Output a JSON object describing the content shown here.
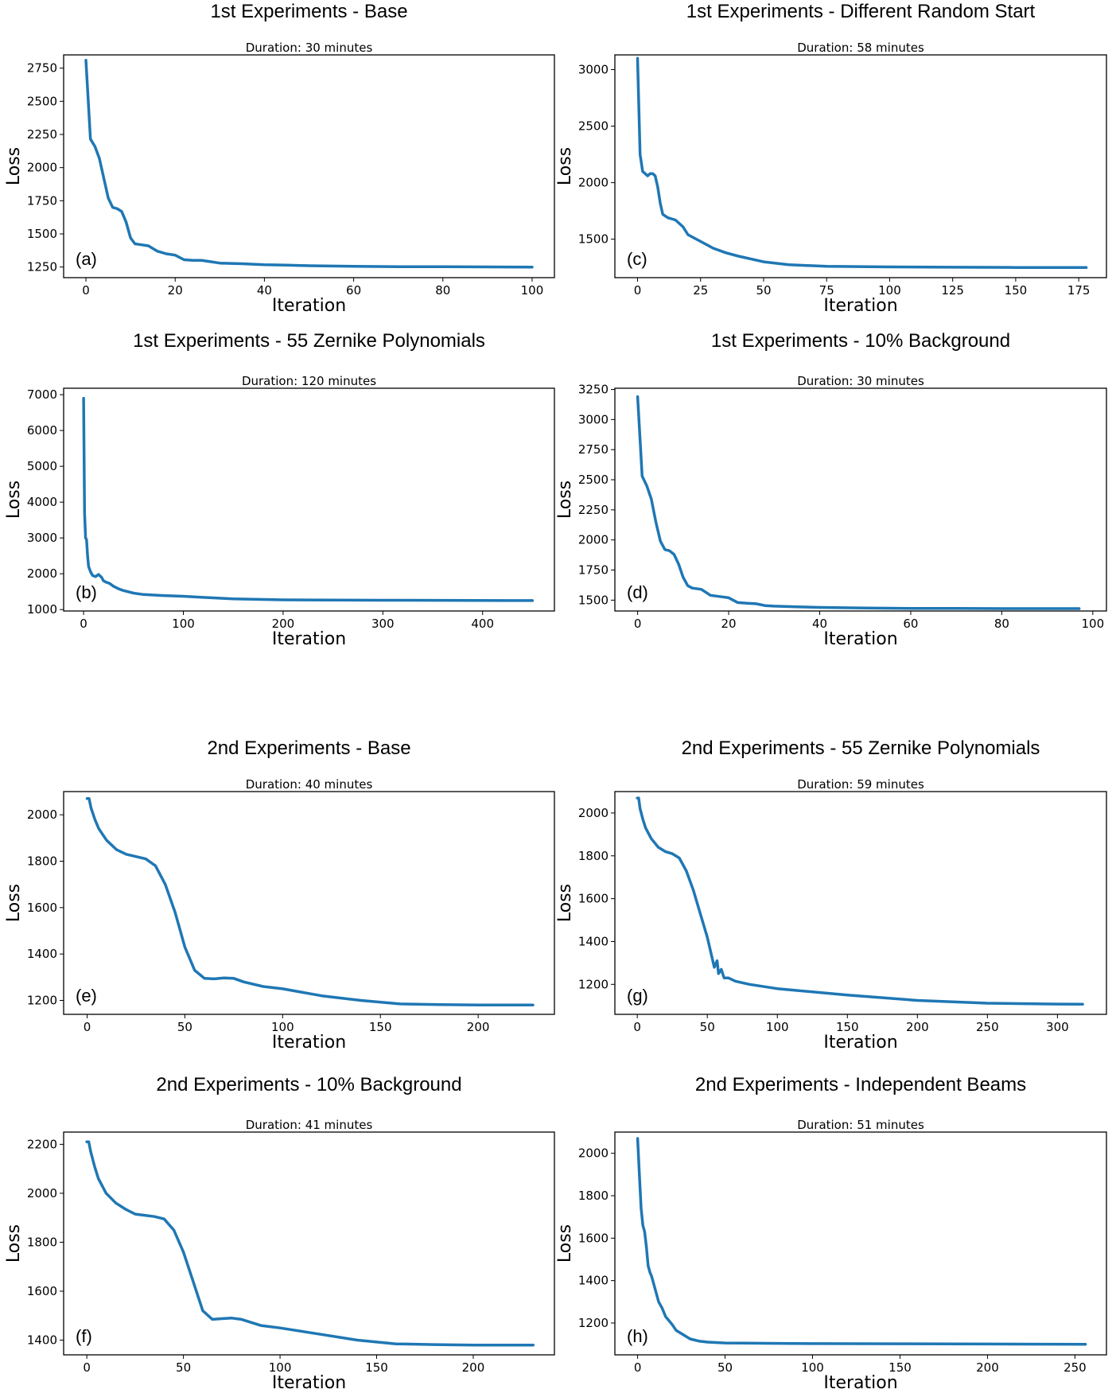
{
  "figure": {
    "line_color": "#1f77b4"
  },
  "chart_data": [
    {
      "type": "line",
      "panel": "(a)",
      "title": "1st Experiments - Base",
      "subtitle": "Duration: 30 minutes",
      "xlabel": "Iteration",
      "ylabel": "Loss",
      "xlim": [
        -5,
        105
      ],
      "ylim": [
        1170,
        2850
      ],
      "xticks": [
        0,
        20,
        40,
        60,
        80,
        100
      ],
      "yticks": [
        1250,
        1500,
        1750,
        2000,
        2250,
        2500,
        2750
      ],
      "x": [
        0,
        1,
        2,
        3,
        4,
        5,
        6,
        7,
        8,
        9,
        10,
        11,
        12,
        14,
        16,
        18,
        20,
        22,
        24,
        26,
        28,
        30,
        35,
        40,
        45,
        50,
        60,
        70,
        80,
        90,
        100
      ],
      "y": [
        2810,
        2215,
        2160,
        2070,
        1920,
        1770,
        1700,
        1690,
        1670,
        1590,
        1470,
        1425,
        1420,
        1410,
        1370,
        1350,
        1340,
        1305,
        1300,
        1300,
        1290,
        1280,
        1275,
        1268,
        1265,
        1260,
        1255,
        1253,
        1252,
        1251,
        1250
      ]
    },
    {
      "type": "line",
      "panel": "(c)",
      "title": "1st Experiments - Different Random Start",
      "subtitle": "Duration: 58 minutes",
      "xlabel": "Iteration",
      "ylabel": "Loss",
      "xlim": [
        -9,
        186
      ],
      "ylim": [
        1160,
        3130
      ],
      "xticks": [
        0,
        25,
        50,
        75,
        100,
        125,
        150,
        175
      ],
      "yticks": [
        1500,
        2000,
        2500,
        3000
      ],
      "x": [
        0,
        1,
        2,
        4,
        5,
        6,
        7,
        8,
        9,
        10,
        12,
        15,
        18,
        20,
        25,
        30,
        35,
        40,
        50,
        60,
        75,
        100,
        125,
        150,
        178
      ],
      "y": [
        3100,
        2250,
        2100,
        2060,
        2080,
        2080,
        2060,
        1960,
        1820,
        1720,
        1690,
        1670,
        1610,
        1540,
        1480,
        1420,
        1380,
        1350,
        1300,
        1275,
        1260,
        1255,
        1252,
        1250,
        1250
      ]
    },
    {
      "type": "line",
      "panel": "(b)",
      "title": "1st Experiments - 55 Zernike Polynomials",
      "subtitle": "Duration: 120 minutes",
      "xlabel": "Iteration",
      "ylabel": "Loss",
      "xlim": [
        -20,
        472
      ],
      "ylim": [
        960,
        7180
      ],
      "xticks": [
        0,
        100,
        200,
        300,
        400
      ],
      "yticks": [
        1000,
        2000,
        3000,
        4000,
        5000,
        6000,
        7000
      ],
      "x": [
        0,
        1,
        2,
        3,
        4,
        5,
        7,
        9,
        12,
        15,
        18,
        20,
        23,
        26,
        30,
        35,
        40,
        50,
        60,
        80,
        100,
        120,
        150,
        200,
        300,
        450
      ],
      "y": [
        6900,
        3700,
        3000,
        2950,
        2500,
        2200,
        2050,
        1950,
        1920,
        1980,
        1900,
        1800,
        1760,
        1730,
        1650,
        1580,
        1530,
        1460,
        1420,
        1390,
        1370,
        1340,
        1300,
        1270,
        1260,
        1250
      ]
    },
    {
      "type": "line",
      "panel": "(d)",
      "title": "1st Experiments - 10% Background",
      "subtitle": "Duration: 30 minutes",
      "xlabel": "Iteration",
      "ylabel": "Loss",
      "xlim": [
        -5,
        103
      ],
      "ylim": [
        1410,
        3260
      ],
      "xticks": [
        0,
        20,
        40,
        60,
        80,
        100
      ],
      "yticks": [
        1500,
        1750,
        2000,
        2250,
        2500,
        2750,
        3000,
        3250
      ],
      "x": [
        0,
        1,
        2,
        3,
        4,
        5,
        6,
        7,
        8,
        9,
        10,
        11,
        12,
        14,
        16,
        18,
        20,
        22,
        24,
        26,
        28,
        30,
        35,
        40,
        50,
        60,
        70,
        80,
        97
      ],
      "y": [
        3190,
        2530,
        2450,
        2340,
        2150,
        1990,
        1920,
        1910,
        1880,
        1800,
        1690,
        1620,
        1600,
        1590,
        1540,
        1530,
        1520,
        1480,
        1475,
        1470,
        1455,
        1450,
        1445,
        1440,
        1435,
        1432,
        1431,
        1430,
        1430
      ]
    },
    {
      "type": "line",
      "panel": "(e)",
      "title": "2nd Experiments - Base",
      "subtitle": "Duration: 40 minutes",
      "xlabel": "Iteration",
      "ylabel": "Loss",
      "xlim": [
        -12,
        239
      ],
      "ylim": [
        1140,
        2100
      ],
      "xticks": [
        0,
        50,
        100,
        150,
        200
      ],
      "yticks": [
        1200,
        1400,
        1600,
        1800,
        2000
      ],
      "x": [
        0,
        1,
        2,
        4,
        6,
        10,
        15,
        20,
        25,
        30,
        35,
        40,
        45,
        50,
        55,
        60,
        65,
        70,
        75,
        80,
        90,
        100,
        120,
        140,
        160,
        180,
        200,
        228
      ],
      "y": [
        2070,
        2070,
        2030,
        1980,
        1940,
        1890,
        1850,
        1830,
        1820,
        1810,
        1780,
        1700,
        1580,
        1430,
        1330,
        1295,
        1293,
        1297,
        1295,
        1280,
        1260,
        1250,
        1220,
        1200,
        1185,
        1182,
        1180,
        1180
      ]
    },
    {
      "type": "line",
      "panel": "(g)",
      "title": "2nd Experiments - 55 Zernike Polynomials",
      "subtitle": "Duration: 59 minutes",
      "xlabel": "Iteration",
      "ylabel": "Loss",
      "xlim": [
        -16,
        335
      ],
      "ylim": [
        1060,
        2100
      ],
      "xticks": [
        0,
        50,
        100,
        150,
        200,
        250,
        300
      ],
      "yticks": [
        1200,
        1400,
        1600,
        1800,
        2000
      ],
      "x": [
        0,
        1,
        2,
        4,
        6,
        10,
        15,
        20,
        25,
        30,
        35,
        40,
        45,
        50,
        55,
        57,
        58,
        60,
        62,
        65,
        70,
        80,
        100,
        150,
        200,
        250,
        300,
        318
      ],
      "y": [
        2070,
        2070,
        2020,
        1970,
        1930,
        1880,
        1840,
        1820,
        1810,
        1790,
        1730,
        1640,
        1530,
        1420,
        1280,
        1310,
        1250,
        1270,
        1230,
        1230,
        1215,
        1200,
        1180,
        1150,
        1125,
        1112,
        1108,
        1107
      ]
    },
    {
      "type": "line",
      "panel": "(f)",
      "title": "2nd Experiments - 10% Background",
      "subtitle": "Duration: 41 minutes",
      "xlabel": "Iteration",
      "ylabel": "Loss",
      "xlim": [
        -12,
        242
      ],
      "ylim": [
        1340,
        2250
      ],
      "xticks": [
        0,
        50,
        100,
        150,
        200
      ],
      "yticks": [
        1400,
        1600,
        1800,
        2000,
        2200
      ],
      "x": [
        0,
        1,
        2,
        4,
        6,
        10,
        15,
        20,
        25,
        30,
        35,
        40,
        45,
        50,
        55,
        60,
        65,
        70,
        75,
        80,
        90,
        100,
        120,
        140,
        160,
        180,
        200,
        231
      ],
      "y": [
        2210,
        2210,
        2170,
        2110,
        2060,
        2000,
        1960,
        1935,
        1915,
        1910,
        1905,
        1895,
        1850,
        1760,
        1640,
        1520,
        1485,
        1488,
        1490,
        1485,
        1460,
        1450,
        1425,
        1400,
        1385,
        1382,
        1380,
        1380
      ]
    },
    {
      "type": "line",
      "panel": "(h)",
      "title": "2nd Experiments - Independent Beams",
      "subtitle": "Duration: 51 minutes",
      "xlabel": "Iteration",
      "ylabel": "Loss",
      "xlim": [
        -13,
        268
      ],
      "ylim": [
        1050,
        2100
      ],
      "xticks": [
        0,
        50,
        100,
        150,
        200,
        250
      ],
      "yticks": [
        1200,
        1400,
        1600,
        1800,
        2000
      ],
      "x": [
        0,
        1,
        2,
        3,
        4,
        5,
        6,
        7,
        8,
        10,
        12,
        14,
        16,
        18,
        20,
        22,
        25,
        30,
        35,
        40,
        50,
        60,
        80,
        100,
        150,
        200,
        256
      ],
      "y": [
        2070,
        1900,
        1740,
        1660,
        1630,
        1560,
        1470,
        1440,
        1420,
        1360,
        1300,
        1270,
        1230,
        1210,
        1190,
        1165,
        1150,
        1125,
        1115,
        1110,
        1106,
        1105,
        1104,
        1103,
        1102,
        1101,
        1100
      ]
    }
  ]
}
